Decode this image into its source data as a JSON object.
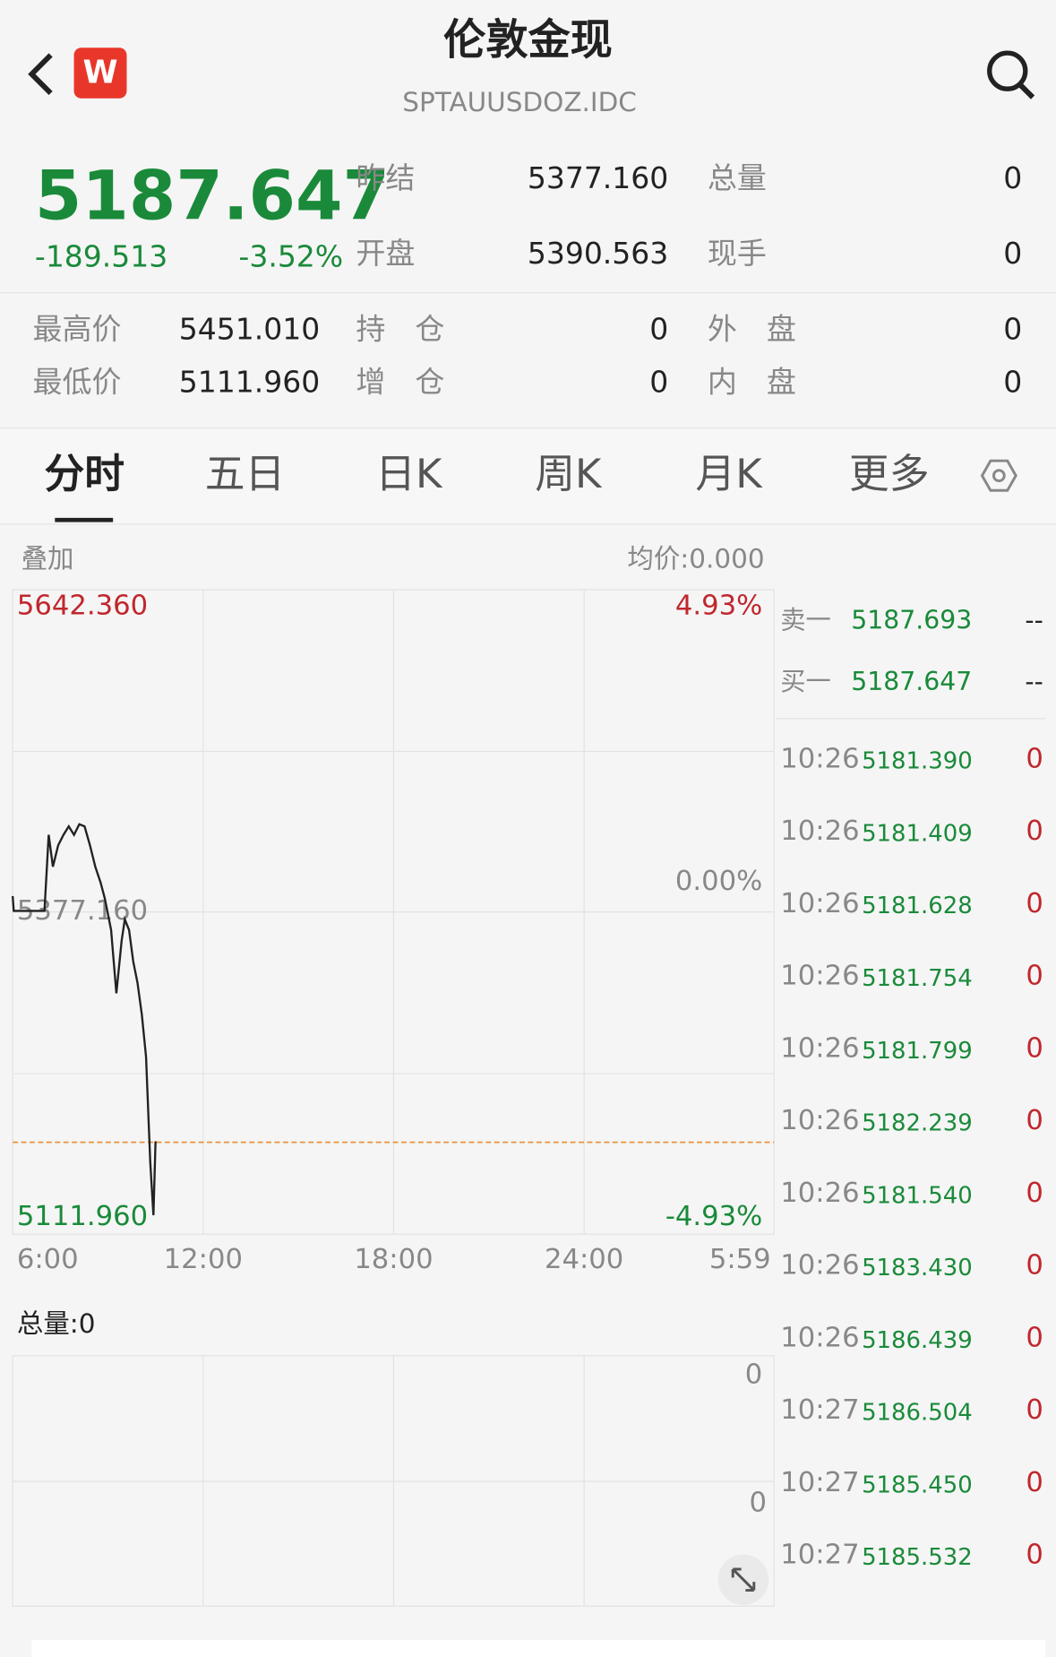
{
  "header": {
    "title": "伦敦金现",
    "code": "SPTAUUSDOZ.IDC",
    "logo": "W"
  },
  "quote": {
    "price": "5187.647",
    "change": "-189.513",
    "change_pct": "-3.52%"
  },
  "stats": {
    "rows": [
      [
        "昨结",
        "5377.160",
        "总量",
        "0"
      ],
      [
        "开盘",
        "5390.563",
        "现手",
        "0"
      ]
    ]
  },
  "details": {
    "rows": [
      [
        "最高价",
        "5451.010",
        "持　仓",
        "0",
        "外　盘",
        "0"
      ],
      [
        "最低价",
        "5111.960",
        "增　仓",
        "0",
        "内　盘",
        "0"
      ]
    ]
  },
  "tabs": [
    "分时",
    "五日",
    "日K",
    "周K",
    "月K",
    "更多"
  ],
  "chart_data": {
    "type": "line",
    "overlay_label": "叠加",
    "avg_label": "均价:0.000",
    "xlim": [
      0,
      1439
    ],
    "xticks": [
      {
        "value": 0,
        "label": "6:00"
      },
      {
        "value": 360,
        "label": "12:00"
      },
      {
        "value": 720,
        "label": "18:00"
      },
      {
        "value": 1080,
        "label": "24:00"
      },
      {
        "value": 1439,
        "label": "5:59"
      }
    ],
    "ylim": [
      5111.96,
      5642.36
    ],
    "yticks": [
      {
        "value": 5642.36,
        "label": "5642.360"
      },
      {
        "value": 5377.16,
        "label": "5377.160"
      },
      {
        "value": 5111.96,
        "label": "5111.960"
      }
    ],
    "y2lim": [
      -4.93,
      4.93
    ],
    "y2ticks": [
      {
        "value": 4.93,
        "label": "4.93%"
      },
      {
        "value": 0,
        "label": "0.00%"
      },
      {
        "value": -4.93,
        "label": "-4.93%"
      }
    ],
    "x": [
      0,
      2,
      60,
      68,
      76,
      86,
      96,
      106,
      116,
      126,
      136,
      146,
      156,
      166,
      174,
      186,
      196,
      206,
      212,
      220,
      228,
      236,
      244,
      252,
      260,
      266,
      270
    ],
    "series": [
      {
        "color": "#222222",
        "values": [
          5390.2,
          5378.0,
          5378.0,
          5440.6,
          5414.5,
          5432.0,
          5440.6,
          5447.6,
          5440.6,
          5449.3,
          5447.6,
          5432.0,
          5414.5,
          5401.5,
          5388.5,
          5362.4,
          5310.2,
          5353.7,
          5371.1,
          5362.4,
          5336.3,
          5318.9,
          5292.8,
          5258.0,
          5171.0,
          5127.6,
          5188.5
        ]
      }
    ],
    "last_price": 5187.647,
    "last_price_color": "#e8923a",
    "volume_label": "总量:0",
    "volume_ticks": [
      0,
      0
    ]
  },
  "order_book": {
    "rows": [
      [
        "卖一",
        "5187.693",
        "--"
      ],
      [
        "买一",
        "5187.647",
        "--"
      ]
    ]
  },
  "trades": {
    "rows": [
      [
        "10:26",
        "5181.390",
        "0"
      ],
      [
        "10:26",
        "5181.409",
        "0"
      ],
      [
        "10:26",
        "5181.628",
        "0"
      ],
      [
        "10:26",
        "5181.754",
        "0"
      ],
      [
        "10:26",
        "5181.799",
        "0"
      ],
      [
        "10:26",
        "5182.239",
        "0"
      ],
      [
        "10:26",
        "5181.540",
        "0"
      ],
      [
        "10:26",
        "5183.430",
        "0"
      ],
      [
        "10:26",
        "5186.439",
        "0"
      ],
      [
        "10:27",
        "5186.504",
        "0"
      ],
      [
        "10:27",
        "5185.450",
        "0"
      ],
      [
        "10:27",
        "5185.532",
        "0"
      ]
    ]
  }
}
